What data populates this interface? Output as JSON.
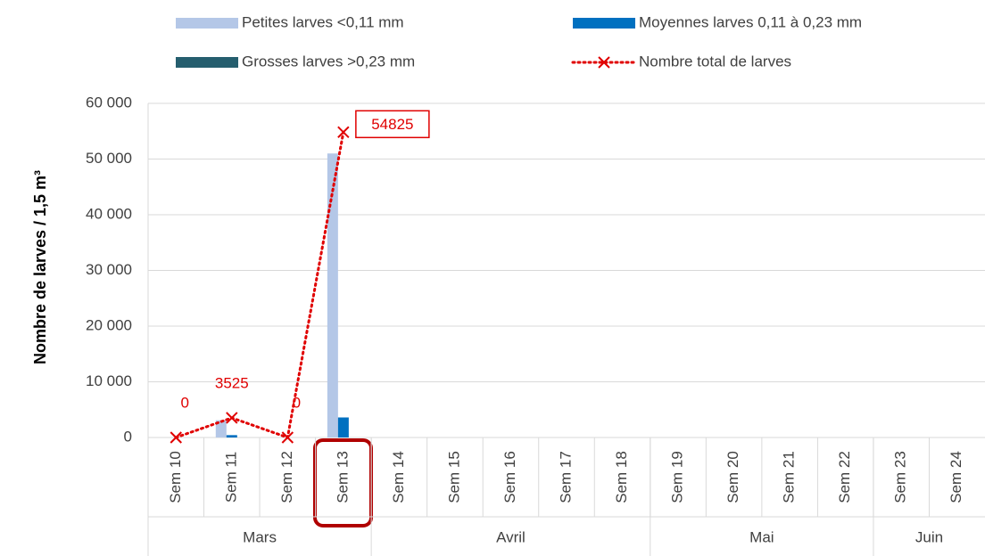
{
  "chart_data": {
    "type": "bar_line",
    "ylabel": "Nombre de larves / 1,5 m³",
    "categories": [
      "Sem 10",
      "Sem 11",
      "Sem 12",
      "Sem 13",
      "Sem 14",
      "Sem 15",
      "Sem 16",
      "Sem 17",
      "Sem 18",
      "Sem 19",
      "Sem 20",
      "Sem 21",
      "Sem 22",
      "Sem 23",
      "Sem 24"
    ],
    "groups": [
      {
        "label": "Mars",
        "span": 4
      },
      {
        "label": "Avril",
        "span": 5
      },
      {
        "label": "Mai",
        "span": 4
      },
      {
        "label": "Juin",
        "span": 2
      }
    ],
    "series": [
      {
        "name": "Petites larves <0,11 mm",
        "color": "#b4c7e7",
        "type": "bar",
        "values": [
          0,
          3100,
          0,
          51000,
          null,
          null,
          null,
          null,
          null,
          null,
          null,
          null,
          null,
          null,
          null
        ]
      },
      {
        "name": "Moyennes larves 0,11 à 0,23 mm",
        "color": "#0070c0",
        "type": "bar",
        "values": [
          0,
          425,
          0,
          3600,
          null,
          null,
          null,
          null,
          null,
          null,
          null,
          null,
          null,
          null,
          null
        ]
      },
      {
        "name": "Grosses larves >0,23 mm",
        "color": "#255e6e",
        "type": "bar",
        "values": [
          0,
          0,
          0,
          0,
          null,
          null,
          null,
          null,
          null,
          null,
          null,
          null,
          null,
          null,
          null
        ]
      },
      {
        "name": "Nombre total de larves",
        "color": "#e00000",
        "type": "line",
        "values": [
          0,
          3525,
          0,
          54825,
          null,
          null,
          null,
          null,
          null,
          null,
          null,
          null,
          null,
          null,
          null
        ]
      }
    ],
    "ylim": [
      0,
      60000
    ],
    "yticks": [
      0,
      {
        "value": 10000,
        "label": "10 000"
      },
      {
        "value": 20000,
        "label": "20 000"
      },
      {
        "value": 30000,
        "label": "30 000"
      },
      {
        "value": 40000,
        "label": "40 000"
      },
      {
        "value": 50000,
        "label": "50 000"
      },
      {
        "value": 60000,
        "label": "60 000"
      }
    ],
    "grid": true
  }
}
